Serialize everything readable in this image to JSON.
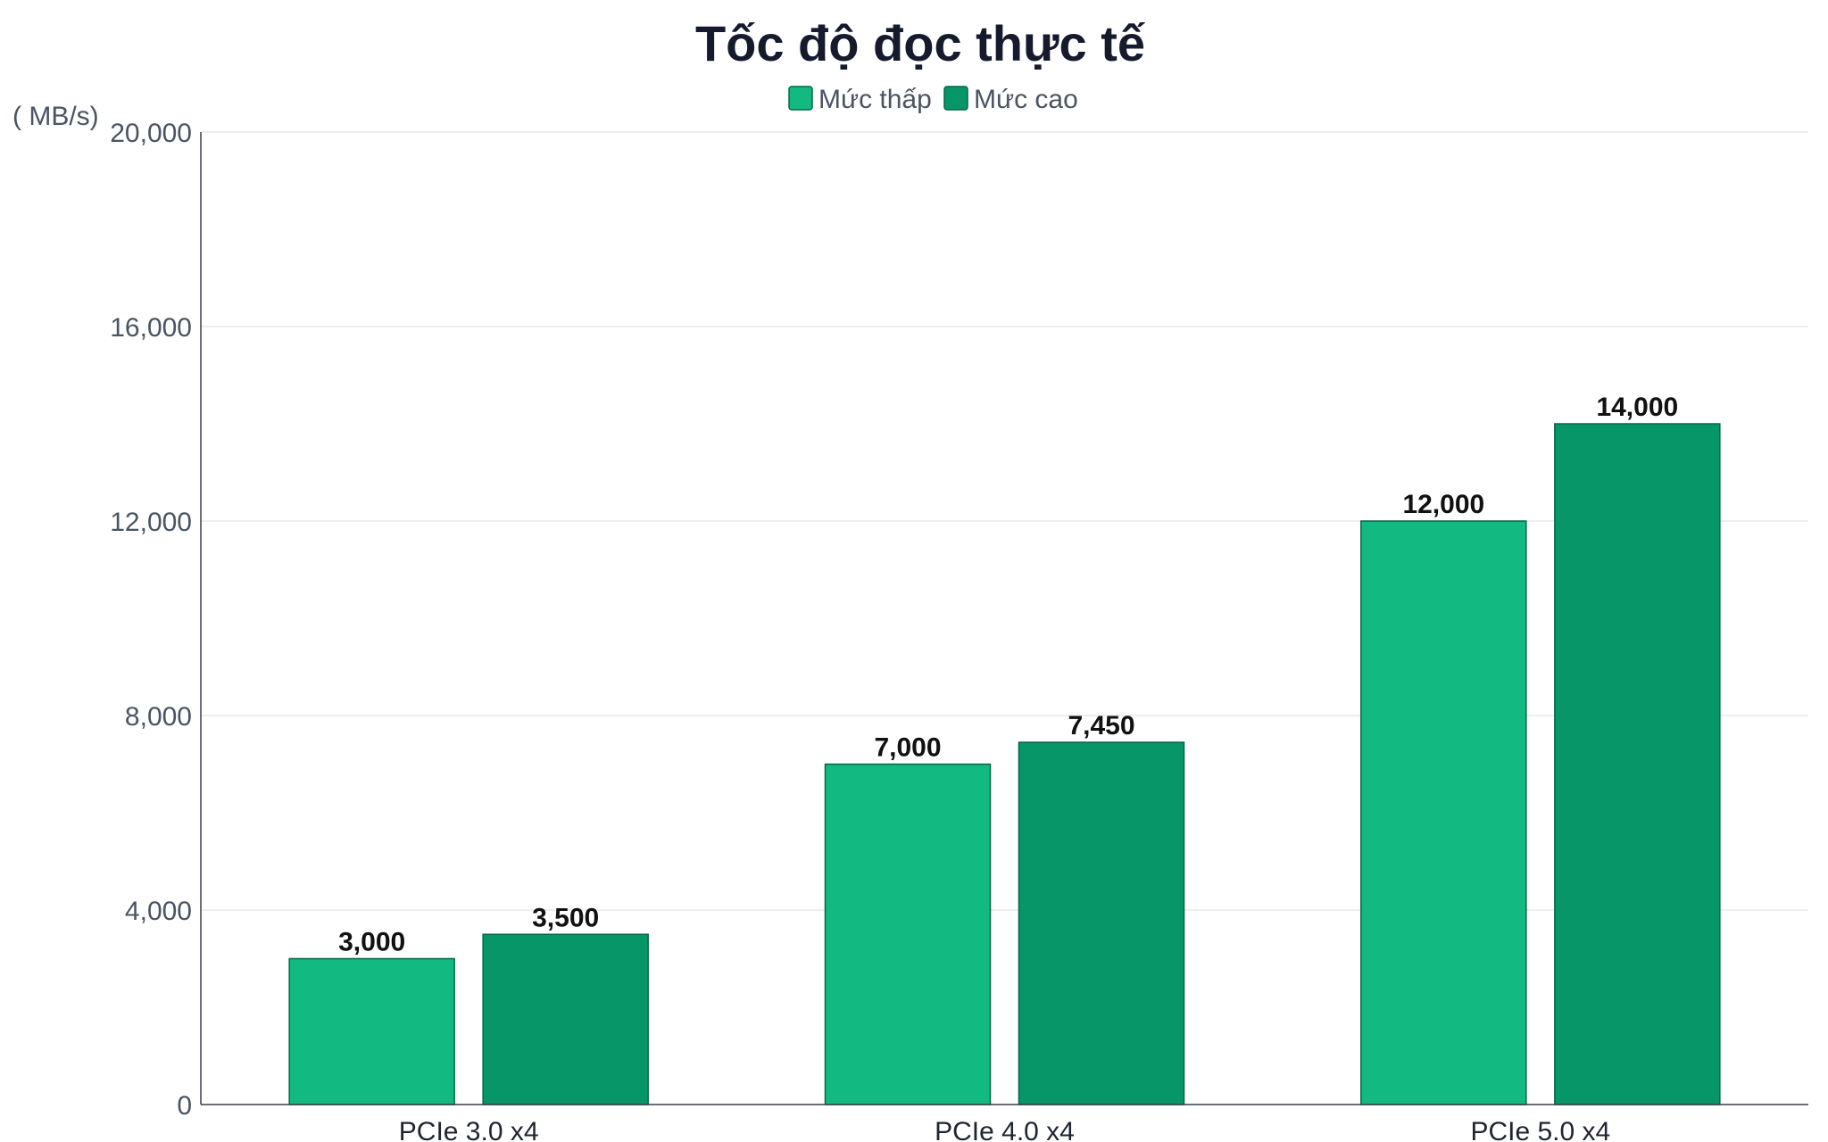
{
  "chart_data": {
    "type": "bar",
    "title": "Tốc độ đọc thực tế",
    "ylabel": "( MB/s)",
    "xlabel": "",
    "categories": [
      "PCIe 3.0 x4",
      "PCIe 4.0 x4",
      "PCIe 5.0 x4"
    ],
    "series": [
      {
        "name": "Mức thấp",
        "values": [
          3000,
          7000,
          12000
        ],
        "labels": [
          "3,000",
          "7,000",
          "12,000"
        ],
        "color": "#12b981"
      },
      {
        "name": "Mức cao",
        "values": [
          3500,
          7450,
          14000
        ],
        "labels": [
          "3,500",
          "7,450",
          "14,000"
        ],
        "color": "#069668"
      }
    ],
    "ylim": [
      0,
      20000
    ],
    "yticks": [
      0,
      4000,
      8000,
      12000,
      16000,
      20000
    ],
    "ytick_labels": [
      "0",
      "4,000",
      "8,000",
      "12,000",
      "16,000",
      "20,000"
    ],
    "grid": true,
    "legend_position": "top-center",
    "colors": {
      "grid": "#e6e8ea",
      "axis": "#3a3f47",
      "bar_border": "#05664a"
    }
  }
}
